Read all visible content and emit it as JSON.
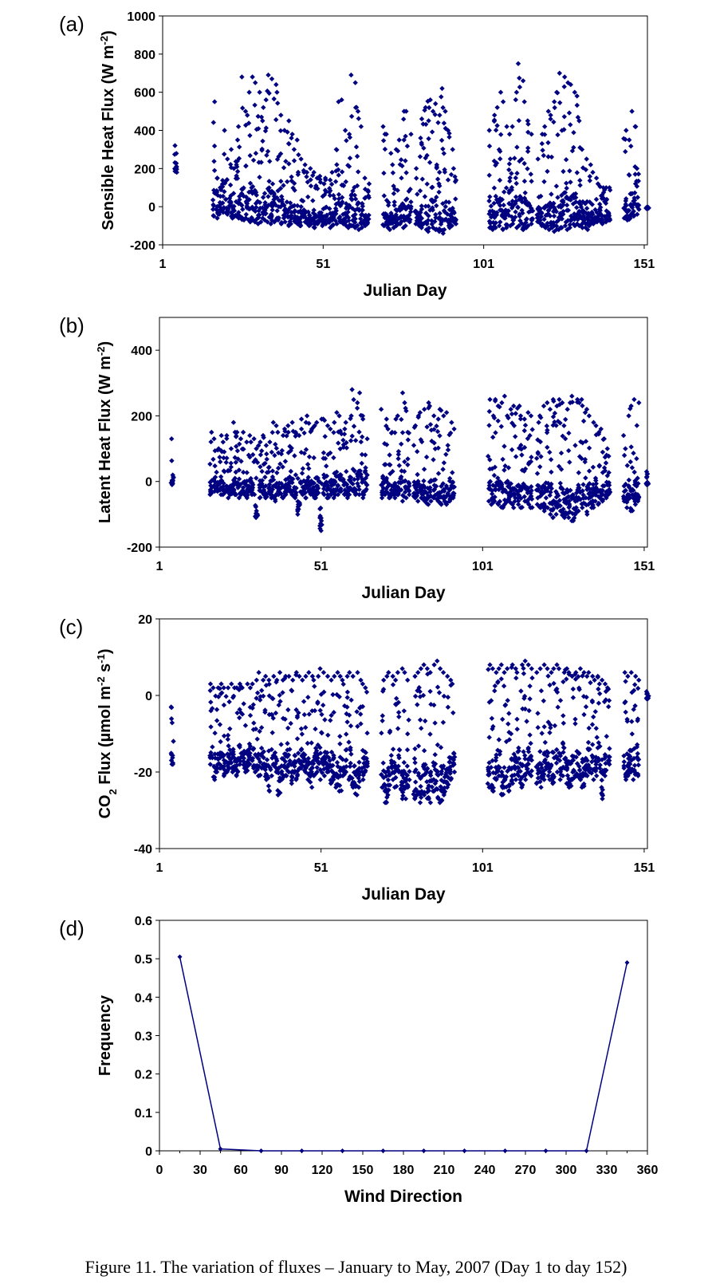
{
  "caption": "Figure 11. The variation of fluxes – January to May, 2007 (Day 1 to day 152)",
  "colors": {
    "marker": "#000080",
    "axis": "#000000"
  },
  "chart_data": [
    {
      "panel_label": "(a)",
      "type": "scatter",
      "xlabel": "Julian Day",
      "ylabel": "Sensible Heat Flux (W m-2)",
      "xlim": [
        1,
        152
      ],
      "ylim": [
        -200,
        1000
      ],
      "xticks": [
        "1",
        "51",
        "101",
        "151"
      ],
      "yticks": [
        "-200",
        "0",
        "200",
        "400",
        "600",
        "800",
        "1000"
      ],
      "marker": "diamond",
      "days": [
        5,
        17,
        18,
        19,
        20,
        21,
        22,
        23,
        24,
        25,
        26,
        27,
        28,
        29,
        30,
        31,
        32,
        33,
        34,
        35,
        36,
        37,
        38,
        39,
        40,
        41,
        42,
        43,
        44,
        45,
        46,
        47,
        48,
        49,
        50,
        51,
        52,
        53,
        54,
        55,
        56,
        57,
        58,
        59,
        60,
        61,
        62,
        63,
        64,
        65,
        70,
        71,
        72,
        73,
        74,
        75,
        76,
        77,
        78,
        80,
        81,
        82,
        83,
        84,
        85,
        86,
        87,
        88,
        89,
        90,
        91,
        92,
        103,
        104,
        105,
        106,
        107,
        108,
        109,
        110,
        111,
        112,
        113,
        114,
        115,
        116,
        118,
        119,
        120,
        121,
        122,
        123,
        124,
        125,
        126,
        127,
        128,
        129,
        130,
        131,
        132,
        133,
        134,
        135,
        136,
        137,
        138,
        139,
        140,
        145,
        146,
        147,
        148,
        149,
        152
      ],
      "daily_max": [
        320,
        550,
        150,
        100,
        400,
        250,
        300,
        200,
        350,
        420,
        680,
        500,
        600,
        680,
        650,
        600,
        520,
        560,
        690,
        670,
        640,
        600,
        480,
        400,
        450,
        380,
        300,
        350,
        250,
        220,
        180,
        200,
        180,
        150,
        160,
        120,
        150,
        140,
        180,
        300,
        550,
        560,
        400,
        380,
        690,
        650,
        500,
        420,
        150,
        120,
        420,
        380,
        280,
        220,
        300,
        350,
        500,
        500,
        380,
        200,
        360,
        460,
        520,
        560,
        500,
        540,
        480,
        620,
        500,
        400,
        300,
        200,
        400,
        480,
        520,
        600,
        550,
        420,
        380,
        420,
        600,
        750,
        660,
        550,
        450,
        380,
        250,
        380,
        420,
        500,
        480,
        550,
        600,
        700,
        680,
        650,
        640,
        600,
        580,
        450,
        300,
        250,
        220,
        180,
        150,
        120,
        100,
        100,
        100,
        400,
        350,
        500,
        420,
        200,
        0
      ],
      "daily_min": [
        180,
        -50,
        -60,
        -40,
        -30,
        -40,
        -50,
        -60,
        -50,
        -60,
        -70,
        -60,
        -80,
        -70,
        -80,
        -90,
        -80,
        -70,
        -80,
        -90,
        -80,
        -70,
        -90,
        -80,
        -100,
        -90,
        -80,
        -90,
        -100,
        -80,
        -90,
        -100,
        -110,
        -90,
        -80,
        -100,
        -90,
        -110,
        -100,
        -90,
        -80,
        -90,
        -100,
        -110,
        -100,
        -110,
        -120,
        -110,
        -100,
        -90,
        -100,
        -110,
        -120,
        -110,
        -100,
        -90,
        -110,
        -100,
        -80,
        -90,
        -100,
        -110,
        -120,
        -130,
        -110,
        -120,
        -130,
        -140,
        -120,
        -110,
        -100,
        -90,
        -110,
        -120,
        -110,
        -100,
        -120,
        -110,
        -100,
        -90,
        -110,
        -100,
        -120,
        -110,
        -100,
        -90,
        -80,
        -100,
        -110,
        -120,
        -110,
        -130,
        -120,
        -110,
        -100,
        -120,
        -110,
        -100,
        -90,
        -100,
        -110,
        -120,
        -100,
        -90,
        -80,
        -70,
        -90,
        -80,
        -70,
        -60,
        -70,
        -60,
        -50,
        -40,
        -10
      ]
    },
    {
      "panel_label": "(b)",
      "type": "scatter",
      "xlabel": "Julian Day",
      "ylabel": "Latent Heat Flux (W m-2)",
      "xlim": [
        1,
        152
      ],
      "ylim": [
        -200,
        500
      ],
      "xticks": [
        "1",
        "51",
        "101",
        "151"
      ],
      "yticks": [
        "-200",
        "0",
        "200",
        "400"
      ],
      "marker": "diamond",
      "days": [
        5,
        17,
        18,
        19,
        20,
        21,
        22,
        23,
        24,
        25,
        26,
        27,
        28,
        29,
        30,
        31,
        32,
        33,
        34,
        35,
        36,
        37,
        38,
        39,
        40,
        41,
        42,
        43,
        44,
        45,
        46,
        47,
        48,
        49,
        50,
        51,
        52,
        53,
        54,
        55,
        56,
        57,
        58,
        59,
        60,
        61,
        62,
        63,
        64,
        65,
        70,
        71,
        72,
        73,
        74,
        75,
        76,
        77,
        78,
        80,
        81,
        82,
        83,
        84,
        85,
        86,
        87,
        88,
        89,
        90,
        91,
        92,
        103,
        104,
        105,
        106,
        107,
        108,
        109,
        110,
        111,
        112,
        113,
        114,
        115,
        116,
        118,
        119,
        120,
        121,
        122,
        123,
        124,
        125,
        126,
        127,
        128,
        129,
        130,
        131,
        132,
        133,
        134,
        135,
        136,
        137,
        138,
        139,
        140,
        145,
        146,
        147,
        148,
        149,
        152
      ],
      "daily_max": [
        130,
        150,
        130,
        100,
        140,
        120,
        140,
        100,
        180,
        150,
        130,
        150,
        120,
        140,
        130,
        100,
        120,
        140,
        110,
        120,
        180,
        170,
        150,
        140,
        160,
        170,
        180,
        150,
        140,
        190,
        180,
        200,
        160,
        170,
        180,
        190,
        190,
        170,
        160,
        180,
        210,
        200,
        160,
        180,
        200,
        280,
        240,
        270,
        200,
        130,
        220,
        190,
        160,
        150,
        190,
        200,
        270,
        240,
        150,
        170,
        200,
        210,
        220,
        240,
        230,
        200,
        190,
        220,
        200,
        210,
        180,
        160,
        250,
        200,
        250,
        230,
        240,
        260,
        200,
        220,
        230,
        230,
        200,
        190,
        210,
        200,
        180,
        200,
        230,
        240,
        220,
        250,
        230,
        250,
        240,
        220,
        240,
        260,
        250,
        240,
        250,
        220,
        200,
        180,
        170,
        150,
        160,
        130,
        100,
        140,
        200,
        230,
        250,
        240,
        30
      ],
      "daily_min": [
        -10,
        -40,
        -30,
        -30,
        -40,
        -40,
        -50,
        -40,
        -40,
        -40,
        -50,
        -40,
        -50,
        -30,
        -40,
        -110,
        -50,
        -40,
        -50,
        -40,
        -50,
        -60,
        -40,
        -50,
        -40,
        -30,
        -40,
        -50,
        -100,
        -40,
        -50,
        -30,
        -40,
        -50,
        -40,
        -150,
        -40,
        -50,
        -40,
        -50,
        -40,
        -30,
        -40,
        -50,
        -40,
        -30,
        -40,
        -40,
        -50,
        -30,
        -50,
        -40,
        -50,
        -40,
        -50,
        -40,
        -60,
        -50,
        -40,
        -50,
        -60,
        -50,
        -60,
        -70,
        -60,
        -50,
        -60,
        -70,
        -60,
        -70,
        -60,
        -50,
        -60,
        -70,
        -60,
        -70,
        -80,
        -70,
        -60,
        -70,
        -80,
        -70,
        -80,
        -60,
        -70,
        -80,
        -70,
        -80,
        -90,
        -80,
        -100,
        -110,
        -100,
        -90,
        -110,
        -100,
        -110,
        -120,
        -100,
        -90,
        -80,
        -100,
        -70,
        -80,
        -60,
        -70,
        -60,
        -50,
        -40,
        -60,
        -80,
        -90,
        -70,
        -60,
        -10
      ]
    },
    {
      "panel_label": "(c)",
      "type": "scatter",
      "xlabel": "Julian Day",
      "ylabel": "CO2 Flux (µmol m-2 s-1)",
      "xlim": [
        1,
        152
      ],
      "ylim": [
        -40,
        20
      ],
      "xticks": [
        "1",
        "51",
        "101",
        "151"
      ],
      "yticks": [
        "-40",
        "-20",
        "0",
        "20"
      ],
      "marker": "diamond",
      "days": [
        5,
        17,
        18,
        19,
        20,
        21,
        22,
        23,
        24,
        25,
        26,
        27,
        28,
        29,
        30,
        31,
        32,
        33,
        34,
        35,
        36,
        37,
        38,
        39,
        40,
        41,
        42,
        43,
        44,
        45,
        46,
        47,
        48,
        49,
        50,
        51,
        52,
        53,
        54,
        55,
        56,
        57,
        58,
        59,
        60,
        61,
        62,
        63,
        64,
        65,
        70,
        71,
        72,
        73,
        74,
        75,
        76,
        77,
        78,
        80,
        81,
        82,
        83,
        84,
        85,
        86,
        87,
        88,
        89,
        90,
        91,
        92,
        103,
        104,
        105,
        106,
        107,
        108,
        109,
        110,
        111,
        112,
        113,
        114,
        115,
        116,
        118,
        119,
        120,
        121,
        122,
        123,
        124,
        125,
        126,
        127,
        128,
        129,
        130,
        131,
        132,
        133,
        134,
        135,
        136,
        137,
        138,
        139,
        140,
        145,
        146,
        147,
        148,
        149,
        152
      ],
      "daily_max": [
        -3,
        3,
        2,
        2,
        3,
        2,
        2,
        3,
        2,
        2,
        3,
        2,
        3,
        2,
        3,
        4,
        6,
        4,
        5,
        4,
        5,
        4,
        6,
        4,
        5,
        5,
        4,
        6,
        5,
        4,
        5,
        6,
        5,
        4,
        5,
        7,
        6,
        5,
        4,
        5,
        6,
        5,
        4,
        5,
        6,
        5,
        6,
        4,
        3,
        2,
        4,
        5,
        6,
        5,
        4,
        6,
        7,
        6,
        4,
        5,
        6,
        7,
        8,
        7,
        6,
        8,
        9,
        7,
        6,
        5,
        4,
        3,
        8,
        7,
        6,
        7,
        8,
        6,
        7,
        8,
        7,
        6,
        8,
        9,
        8,
        7,
        6,
        7,
        8,
        7,
        6,
        7,
        8,
        7,
        6,
        7,
        6,
        5,
        6,
        7,
        6,
        5,
        6,
        5,
        4,
        5,
        4,
        3,
        2,
        6,
        5,
        6,
        5,
        4,
        1
      ],
      "daily_min": [
        -18,
        -18,
        -22,
        -20,
        -19,
        -21,
        -20,
        -19,
        -20,
        -21,
        -18,
        -19,
        -20,
        -18,
        -19,
        -20,
        -21,
        -19,
        -22,
        -25,
        -21,
        -20,
        -26,
        -22,
        -21,
        -20,
        -23,
        -22,
        -21,
        -19,
        -20,
        -22,
        -24,
        -21,
        -20,
        -22,
        -21,
        -20,
        -23,
        -22,
        -24,
        -25,
        -21,
        -20,
        -22,
        -24,
        -26,
        -24,
        -22,
        -20,
        -24,
        -28,
        -26,
        -22,
        -24,
        -20,
        -27,
        -27,
        -24,
        -27,
        -26,
        -28,
        -26,
        -27,
        -28,
        -25,
        -27,
        -28,
        -26,
        -24,
        -22,
        -20,
        -24,
        -25,
        -22,
        -21,
        -26,
        -24,
        -25,
        -23,
        -22,
        -21,
        -24,
        -22,
        -20,
        -21,
        -23,
        -24,
        -22,
        -21,
        -22,
        -23,
        -20,
        -22,
        -21,
        -23,
        -24,
        -22,
        -21,
        -22,
        -24,
        -21,
        -20,
        -22,
        -21,
        -19,
        -27,
        -21,
        -18,
        -22,
        -21,
        -20,
        -22,
        -21,
        -1
      ]
    },
    {
      "panel_label": "(d)",
      "type": "line",
      "xlabel": "Wind Direction",
      "ylabel": "Frequency",
      "xlim": [
        0,
        360
      ],
      "ylim": [
        0,
        0.6
      ],
      "xticks": [
        "0",
        "30",
        "60",
        "90",
        "120",
        "150",
        "180",
        "210",
        "240",
        "270",
        "300",
        "330",
        "360"
      ],
      "yticks": [
        "0",
        "0.1",
        "0.2",
        "0.3",
        "0.4",
        "0.5",
        "0.6"
      ],
      "x": [
        15,
        45,
        75,
        105,
        135,
        165,
        195,
        225,
        255,
        285,
        315,
        345
      ],
      "y": [
        0.505,
        0.005,
        0,
        0,
        0,
        0,
        0,
        0,
        0,
        0,
        0,
        0.49
      ]
    }
  ]
}
